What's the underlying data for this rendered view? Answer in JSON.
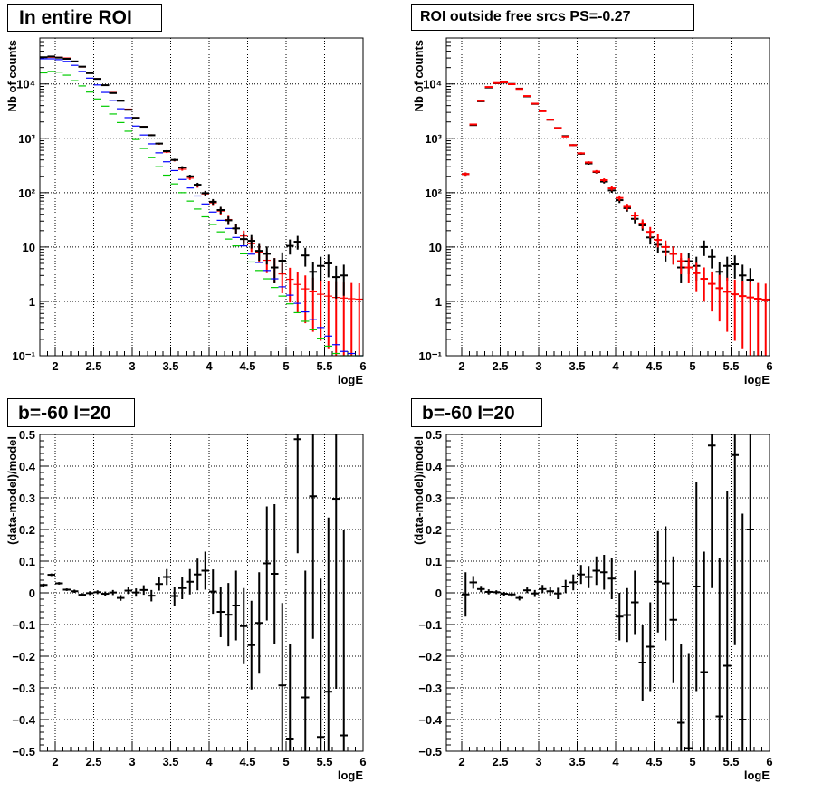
{
  "titles": [
    "In entire ROI",
    "ROI outside free srcs PS=-0.27",
    "b=-60 l=20",
    "b=-60 l=20"
  ],
  "chart_data": [
    {
      "type": "scatter",
      "panel": "top-left",
      "title": "In entire ROI",
      "xlabel": "logE",
      "ylabel": "Nb of counts",
      "xlim": [
        1.8,
        6.0
      ],
      "ylim": [
        0.1,
        70000
      ],
      "yscale": "log",
      "grid": true,
      "xticks": [
        "2",
        "2.5",
        "3",
        "3.5",
        "4",
        "4.5",
        "5",
        "5.5",
        "6"
      ],
      "yticks": [
        "10⁻¹",
        "1",
        "10",
        "10²",
        "10³",
        "10⁴"
      ],
      "series": [
        {
          "color": "#ff0000",
          "style": "line",
          "x": [
            1.85,
            1.95,
            2.05,
            2.15,
            2.25,
            2.35,
            2.45,
            2.55,
            2.65,
            2.75,
            2.85,
            2.95,
            3.05,
            3.15,
            3.25,
            3.35,
            3.45,
            3.55,
            3.65,
            3.75,
            3.85,
            3.95,
            4.05,
            4.15,
            4.25,
            4.35,
            4.45,
            4.55,
            4.65,
            4.75,
            4.85,
            4.95,
            5.05,
            5.15,
            5.25,
            5.35,
            5.45,
            5.55,
            5.65,
            5.75,
            5.85,
            5.95
          ],
          "y": [
            31000,
            31000,
            31000,
            30000,
            26000,
            20500,
            16000,
            12500,
            9500,
            7000,
            5000,
            3450,
            2400,
            1650,
            1150,
            790,
            560,
            395,
            270,
            185,
            135,
            95,
            65,
            46,
            32,
            22,
            16,
            11.5,
            8.1,
            5.7,
            4.2,
            3.2,
            2.55,
            2.05,
            1.7,
            1.5,
            1.35,
            1.25,
            1.18,
            1.15,
            1.12,
            1.1
          ]
        },
        {
          "color": "#000000",
          "style": "bars",
          "x": [
            1.85,
            1.95,
            2.05,
            2.15,
            2.25,
            2.35,
            2.45,
            2.55,
            2.65,
            2.75,
            2.85,
            2.95,
            3.05,
            3.15,
            3.25,
            3.35,
            3.45,
            3.55,
            3.65,
            3.75,
            3.85,
            3.95,
            4.05,
            4.15,
            4.25,
            4.35,
            4.45,
            4.55,
            4.65,
            4.75,
            4.85,
            4.95,
            5.05,
            5.15,
            5.25,
            5.35,
            5.45,
            5.55,
            5.65,
            5.75
          ],
          "y": [
            31000,
            32000,
            30500,
            29000,
            26000,
            20800,
            15800,
            12400,
            9500,
            6800,
            4900,
            3350,
            2380,
            1630,
            1140,
            800,
            580,
            400,
            290,
            200,
            140,
            98,
            68,
            48,
            31,
            22,
            14,
            13,
            8.5,
            7.5,
            4.2,
            5.6,
            10.5,
            12.5,
            7.0,
            3.5,
            4.5,
            5.0,
            2.8,
            3.0
          ]
        },
        {
          "color": "#0000ff",
          "style": "line",
          "x": [
            1.85,
            1.95,
            2.05,
            2.15,
            2.25,
            2.35,
            2.45,
            2.55,
            2.65,
            2.75,
            2.85,
            2.95,
            3.05,
            3.15,
            3.25,
            3.35,
            3.45,
            3.55,
            3.65,
            3.75,
            3.85,
            3.95,
            4.05,
            4.15,
            4.25,
            4.35,
            4.45,
            4.55,
            4.65,
            4.75,
            4.85,
            4.95,
            5.05,
            5.15,
            5.25,
            5.35,
            5.45,
            5.55,
            5.65,
            5.75,
            5.85,
            5.95
          ],
          "y": [
            29000,
            29000,
            28000,
            26000,
            22000,
            17000,
            12800,
            9600,
            7000,
            5000,
            3500,
            2400,
            1680,
            1150,
            790,
            540,
            370,
            255,
            175,
            122,
            87,
            62,
            44,
            31,
            22,
            15,
            10.5,
            7.4,
            5.2,
            3.7,
            2.6,
            1.85,
            1.3,
            0.92,
            0.64,
            0.46,
            0.33,
            0.23,
            0.16,
            0.12,
            0.11,
            0.1
          ]
        },
        {
          "color": "#00cc00",
          "style": "line",
          "x": [
            1.85,
            1.95,
            2.05,
            2.15,
            2.25,
            2.35,
            2.45,
            2.55,
            2.65,
            2.75,
            2.85,
            2.95,
            3.05,
            3.15,
            3.25,
            3.35,
            3.45,
            3.55,
            3.65,
            3.75,
            3.85,
            3.95,
            4.05,
            4.15,
            4.25,
            4.35,
            4.45,
            4.55,
            4.65,
            4.75,
            4.85,
            4.95,
            5.05,
            5.15,
            5.25,
            5.35,
            5.45,
            5.55,
            5.65,
            5.75,
            5.85,
            5.95
          ],
          "y": [
            16000,
            17000,
            16500,
            14500,
            11500,
            9200,
            7100,
            5300,
            3900,
            2800,
            1950,
            1350,
            950,
            650,
            440,
            300,
            210,
            145,
            100,
            70,
            50,
            36,
            26,
            19,
            14,
            10.5,
            7.5,
            5.3,
            3.7,
            2.6,
            1.8,
            1.25,
            0.9,
            0.62,
            0.43,
            0.3,
            0.21,
            0.15,
            0.11,
            0.1,
            0.1,
            0.1
          ]
        }
      ]
    },
    {
      "type": "scatter",
      "panel": "top-right",
      "title": "ROI outside free srcs PS=-0.27",
      "xlabel": "logE",
      "ylabel": "Nb of counts",
      "xlim": [
        1.8,
        6.0
      ],
      "ylim": [
        0.1,
        70000
      ],
      "yscale": "log",
      "grid": true,
      "xticks": [
        "2",
        "2.5",
        "3",
        "3.5",
        "4",
        "4.5",
        "5",
        "5.5",
        "6"
      ],
      "yticks": [
        "10⁻¹",
        "1",
        "10",
        "10²",
        "10³",
        "10⁴"
      ],
      "series": [
        {
          "color": "#000000",
          "style": "bars",
          "x": [
            2.05,
            2.15,
            2.25,
            2.35,
            2.45,
            2.55,
            2.65,
            2.75,
            2.85,
            2.95,
            3.05,
            3.15,
            3.25,
            3.35,
            3.45,
            3.55,
            3.65,
            3.75,
            3.85,
            3.95,
            4.05,
            4.15,
            4.25,
            4.35,
            4.45,
            4.55,
            4.65,
            4.75,
            4.85,
            4.95,
            5.05,
            5.15,
            5.25,
            5.35,
            5.45,
            5.55,
            5.65,
            5.75
          ],
          "y": [
            220,
            1750,
            4800,
            8600,
            10300,
            10600,
            10000,
            8200,
            5900,
            4300,
            3200,
            2200,
            1550,
            1100,
            750,
            520,
            345,
            240,
            160,
            110,
            73,
            52,
            33,
            25,
            15,
            11,
            8.3,
            7.5,
            4.2,
            5.5,
            4.5,
            10,
            6.6,
            3.5,
            4.5,
            4.8,
            3,
            2.5
          ]
        },
        {
          "color": "#ff0000",
          "style": "bars",
          "x": [
            2.05,
            2.15,
            2.25,
            2.35,
            2.45,
            2.55,
            2.65,
            2.75,
            2.85,
            2.95,
            3.05,
            3.15,
            3.25,
            3.35,
            3.45,
            3.55,
            3.65,
            3.75,
            3.85,
            3.95,
            4.05,
            4.15,
            4.25,
            4.35,
            4.45,
            4.55,
            4.65,
            4.75,
            4.85,
            4.95,
            5.05,
            5.15,
            5.25,
            5.35,
            5.45,
            5.55,
            5.65,
            5.75,
            5.85,
            5.95
          ],
          "y": [
            220,
            1800,
            4900,
            8800,
            10400,
            10700,
            9900,
            8100,
            6000,
            4350,
            3150,
            2200,
            1550,
            1080,
            750,
            530,
            360,
            245,
            170,
            120,
            80,
            55,
            38,
            27,
            19,
            13.5,
            10,
            7.5,
            5.5,
            4.2,
            3.3,
            2.6,
            2.1,
            1.75,
            1.5,
            1.35,
            1.25,
            1.18,
            1.12,
            1.08
          ]
        }
      ]
    },
    {
      "type": "scatter",
      "panel": "bottom-left",
      "title": "b=-60 l=20",
      "xlabel": "logE",
      "ylabel": "(data-model)/model",
      "xlim": [
        1.8,
        6.0
      ],
      "ylim": [
        -0.5,
        0.5
      ],
      "grid": true,
      "xticks": [
        "2",
        "2.5",
        "3",
        "3.5",
        "4",
        "4.5",
        "5",
        "5.5",
        "6"
      ],
      "yticks": [
        "−0.5",
        "−0.4",
        "−0.3",
        "−0.2",
        "−0.1",
        "0",
        "0.1",
        "0.2",
        "0.3",
        "0.4",
        "0.5"
      ],
      "points": {
        "x": [
          1.85,
          1.95,
          2.05,
          2.15,
          2.25,
          2.35,
          2.45,
          2.55,
          2.65,
          2.75,
          2.85,
          2.95,
          3.05,
          3.15,
          3.25,
          3.35,
          3.45,
          3.55,
          3.65,
          3.75,
          3.85,
          3.95,
          4.05,
          4.15,
          4.25,
          4.35,
          4.45,
          4.55,
          4.65,
          4.75,
          4.85,
          4.95,
          5.05,
          5.15,
          5.25,
          5.35,
          5.45,
          5.55,
          5.65,
          5.75
        ],
        "y": [
          0.025,
          0.057,
          0.03,
          0.01,
          0.005,
          -0.006,
          -0.001,
          0.002,
          -0.003,
          0.001,
          -0.016,
          0.007,
          0.001,
          0.009,
          -0.009,
          0.028,
          0.05,
          -0.01,
          0.015,
          0.035,
          0.058,
          0.07,
          0.004,
          -0.06,
          -0.069,
          -0.04,
          -0.105,
          -0.165,
          -0.095,
          0.093,
          0.06,
          -0.292,
          -0.46,
          0.485,
          -0.33,
          0.305,
          -0.455,
          -0.312,
          0.297,
          -0.45
        ],
        "err": [
          0.004,
          0.004,
          0.004,
          0.004,
          0.005,
          0.005,
          0.006,
          0.006,
          0.007,
          0.008,
          0.009,
          0.011,
          0.013,
          0.015,
          0.018,
          0.021,
          0.025,
          0.03,
          0.035,
          0.04,
          0.05,
          0.06,
          0.07,
          0.08,
          0.1,
          0.11,
          0.12,
          0.14,
          0.16,
          0.18,
          0.22,
          0.26,
          0.3,
          0.36,
          0.4,
          0.45,
          0.5,
          0.55,
          0.6,
          0.65
        ]
      }
    },
    {
      "type": "scatter",
      "panel": "bottom-right",
      "title": "b=-60 l=20",
      "xlabel": "logE",
      "ylabel": "(data-model)/model",
      "xlim": [
        1.8,
        6.0
      ],
      "ylim": [
        -0.5,
        0.5
      ],
      "grid": true,
      "xticks": [
        "2",
        "2.5",
        "3",
        "3.5",
        "4",
        "4.5",
        "5",
        "5.5",
        "6"
      ],
      "yticks": [
        "−0.5",
        "−0.4",
        "−0.3",
        "−0.2",
        "−0.1",
        "0",
        "0.1",
        "0.2",
        "0.3",
        "0.4",
        "0.5"
      ],
      "points": {
        "x": [
          2.05,
          2.15,
          2.25,
          2.35,
          2.45,
          2.55,
          2.65,
          2.75,
          2.85,
          2.95,
          3.05,
          3.15,
          3.25,
          3.35,
          3.45,
          3.55,
          3.65,
          3.75,
          3.85,
          3.95,
          4.05,
          4.15,
          4.25,
          4.35,
          4.45,
          4.55,
          4.65,
          4.75,
          4.85,
          4.95,
          5.05,
          5.15,
          5.25,
          5.35,
          5.45,
          5.55,
          5.65,
          5.75
        ],
        "y": [
          -0.005,
          0.033,
          0.012,
          0.003,
          0.002,
          -0.003,
          -0.005,
          -0.016,
          0.008,
          -0.002,
          0.012,
          0.005,
          -0.002,
          0.02,
          0.033,
          0.058,
          0.05,
          0.07,
          0.065,
          0.045,
          -0.075,
          -0.07,
          -0.03,
          -0.22,
          -0.17,
          0.035,
          0.03,
          -0.085,
          -0.41,
          -0.49,
          0.02,
          -0.25,
          0.465,
          -0.39,
          -0.23,
          0.435,
          -0.4,
          0.2
        ],
        "err": [
          0.07,
          0.02,
          0.01,
          0.008,
          0.006,
          0.006,
          0.007,
          0.008,
          0.009,
          0.011,
          0.013,
          0.015,
          0.018,
          0.021,
          0.025,
          0.03,
          0.035,
          0.045,
          0.055,
          0.065,
          0.075,
          0.085,
          0.1,
          0.12,
          0.14,
          0.16,
          0.18,
          0.2,
          0.25,
          0.3,
          0.33,
          0.38,
          0.45,
          0.5,
          0.55,
          0.6,
          0.65,
          0.7
        ]
      }
    }
  ]
}
